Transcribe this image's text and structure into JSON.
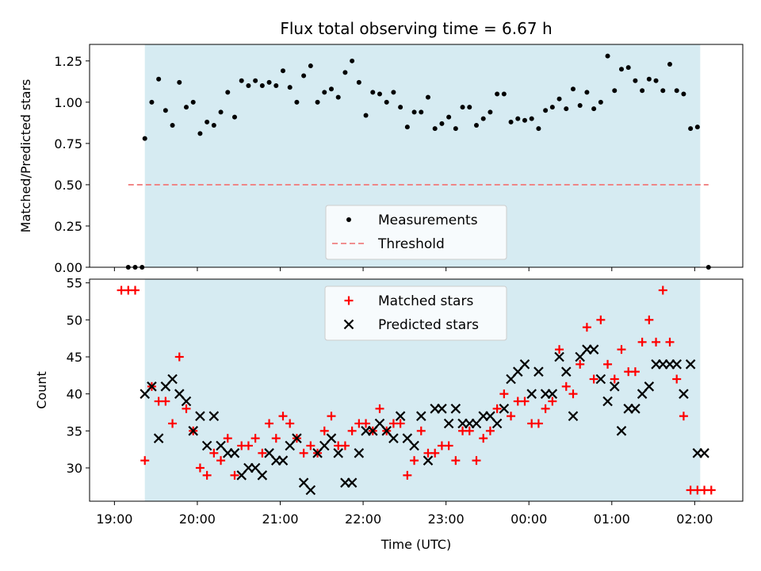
{
  "chart_data": [
    {
      "type": "scatter",
      "title": "Flux total observing time = 6.67 h",
      "xlabel": "",
      "ylabel": "Matched/Predicted stars",
      "ylim": [
        0,
        1.35
      ],
      "yticks": [
        "0.00",
        "0.25",
        "0.50",
        "0.75",
        "1.00",
        "1.25"
      ],
      "ytick_values": [
        0,
        0.25,
        0.5,
        0.75,
        1.0,
        1.25
      ],
      "xlim_hours": [
        18.7,
        26.58
      ],
      "shaded_span": {
        "start": "19:22",
        "end": "02:04",
        "color": "#add8e6"
      },
      "threshold": {
        "value": 0.5,
        "from": "19:10",
        "to": "02:10",
        "color": "#f08080",
        "style": "dashed"
      },
      "legend": {
        "placement": "lower-center",
        "entries": [
          "Measurements",
          "Threshold"
        ]
      },
      "series": [
        {
          "name": "Measurements",
          "color": "#000000",
          "marker": "dot",
          "x": [
            "19:10",
            "19:15",
            "19:20",
            "19:22",
            "19:27",
            "19:32",
            "19:37",
            "19:42",
            "19:47",
            "19:52",
            "19:57",
            "20:02",
            "20:07",
            "20:12",
            "20:17",
            "20:22",
            "20:27",
            "20:32",
            "20:37",
            "20:42",
            "20:47",
            "20:52",
            "20:57",
            "21:02",
            "21:07",
            "21:12",
            "21:17",
            "21:22",
            "21:27",
            "21:32",
            "21:37",
            "21:42",
            "21:47",
            "21:52",
            "21:57",
            "22:02",
            "22:07",
            "22:12",
            "22:17",
            "22:22",
            "22:27",
            "22:32",
            "22:37",
            "22:42",
            "22:47",
            "22:52",
            "22:57",
            "23:02",
            "23:07",
            "23:12",
            "23:17",
            "23:22",
            "23:27",
            "23:32",
            "23:37",
            "23:42",
            "23:47",
            "23:52",
            "23:57",
            "00:02",
            "00:07",
            "00:12",
            "00:17",
            "00:22",
            "00:27",
            "00:32",
            "00:37",
            "00:42",
            "00:47",
            "00:52",
            "00:57",
            "01:02",
            "01:07",
            "01:12",
            "01:17",
            "01:22",
            "01:27",
            "01:32",
            "01:37",
            "01:42",
            "01:47",
            "01:52",
            "01:57",
            "02:02",
            "02:10"
          ],
          "y": [
            0.0,
            0.0,
            0.0,
            0.78,
            1.0,
            1.14,
            0.95,
            0.86,
            1.12,
            0.97,
            1.0,
            0.81,
            0.88,
            0.86,
            0.94,
            1.06,
            0.91,
            1.13,
            1.1,
            1.13,
            1.1,
            1.12,
            1.1,
            1.19,
            1.09,
            1.0,
            1.16,
            1.22,
            1.0,
            1.06,
            1.08,
            1.03,
            1.18,
            1.25,
            1.12,
            0.92,
            1.06,
            1.05,
            1.0,
            1.06,
            0.97,
            0.85,
            0.94,
            0.94,
            1.03,
            0.84,
            0.87,
            0.91,
            0.84,
            0.97,
            0.97,
            0.86,
            0.9,
            0.94,
            1.05,
            1.05,
            0.88,
            0.9,
            0.89,
            0.9,
            0.84,
            0.95,
            0.97,
            1.02,
            0.96,
            1.08,
            0.98,
            1.06,
            0.96,
            1.0,
            1.28,
            1.07,
            1.2,
            1.21,
            1.13,
            1.07,
            1.14,
            1.13,
            1.07,
            1.23,
            1.07,
            1.05,
            0.84,
            0.85,
            0.0
          ]
        }
      ]
    },
    {
      "type": "scatter",
      "title": "",
      "xlabel": "Time (UTC)",
      "ylabel": "Count",
      "ylim": [
        25.5,
        55.5
      ],
      "yticks": [
        "30",
        "35",
        "40",
        "45",
        "50",
        "55"
      ],
      "ytick_values": [
        30,
        35,
        40,
        45,
        50,
        55
      ],
      "xticks": [
        "19:00",
        "20:00",
        "21:00",
        "22:00",
        "23:00",
        "00:00",
        "01:00",
        "02:00"
      ],
      "xtick_values": [
        19,
        20,
        21,
        22,
        23,
        24,
        25,
        26
      ],
      "xlim_hours": [
        18.7,
        26.58
      ],
      "shaded_span": {
        "start": "19:22",
        "end": "02:04",
        "color": "#add8e6"
      },
      "legend": {
        "placement": "upper-center",
        "entries": [
          "Matched stars",
          "Predicted stars"
        ]
      },
      "series": [
        {
          "name": "Matched stars",
          "color": "#ff0000",
          "marker": "plus",
          "x": [
            "19:05",
            "19:10",
            "19:15",
            "19:22",
            "19:27",
            "19:32",
            "19:37",
            "19:42",
            "19:47",
            "19:52",
            "19:57",
            "20:02",
            "20:07",
            "20:12",
            "20:17",
            "20:22",
            "20:27",
            "20:32",
            "20:37",
            "20:42",
            "20:47",
            "20:52",
            "20:57",
            "21:02",
            "21:07",
            "21:12",
            "21:17",
            "21:22",
            "21:27",
            "21:32",
            "21:37",
            "21:42",
            "21:47",
            "21:52",
            "21:57",
            "22:02",
            "22:07",
            "22:12",
            "22:17",
            "22:22",
            "22:27",
            "22:32",
            "22:37",
            "22:42",
            "22:47",
            "22:52",
            "22:57",
            "23:02",
            "23:07",
            "23:12",
            "23:17",
            "23:22",
            "23:27",
            "23:32",
            "23:37",
            "23:42",
            "23:47",
            "23:52",
            "23:57",
            "00:02",
            "00:07",
            "00:12",
            "00:17",
            "00:22",
            "00:27",
            "00:32",
            "00:37",
            "00:42",
            "00:47",
            "00:52",
            "00:57",
            "01:02",
            "01:07",
            "01:12",
            "01:17",
            "01:22",
            "01:27",
            "01:32",
            "01:37",
            "01:42",
            "01:47",
            "01:52",
            "01:57",
            "02:02",
            "02:07",
            "02:12"
          ],
          "y": [
            54,
            54,
            54,
            31,
            41,
            39,
            39,
            36,
            45,
            38,
            35,
            30,
            29,
            32,
            31,
            34,
            29,
            33,
            33,
            34,
            32,
            36,
            34,
            37,
            36,
            34,
            32,
            33,
            32,
            35,
            37,
            33,
            33,
            35,
            36,
            36,
            35,
            38,
            35,
            36,
            36,
            29,
            31,
            35,
            32,
            32,
            33,
            33,
            31,
            35,
            35,
            31,
            34,
            35,
            38,
            40,
            37,
            39,
            39,
            36,
            36,
            38,
            39,
            46,
            41,
            40,
            44,
            49,
            42,
            50,
            44,
            42,
            46,
            43,
            43,
            47,
            50,
            47,
            54,
            47,
            42,
            37,
            27,
            27,
            27,
            27
          ],
          "note_visible": "points as plotted"
        },
        {
          "name": "Predicted stars",
          "color": "#000000",
          "marker": "x",
          "x": [
            "19:22",
            "19:27",
            "19:32",
            "19:37",
            "19:42",
            "19:47",
            "19:52",
            "19:57",
            "20:02",
            "20:07",
            "20:12",
            "20:17",
            "20:22",
            "20:27",
            "20:32",
            "20:37",
            "20:42",
            "20:47",
            "20:52",
            "20:57",
            "21:02",
            "21:07",
            "21:12",
            "21:17",
            "21:22",
            "21:27",
            "21:32",
            "21:37",
            "21:42",
            "21:47",
            "21:52",
            "21:57",
            "22:02",
            "22:07",
            "22:12",
            "22:17",
            "22:22",
            "22:27",
            "22:32",
            "22:37",
            "22:42",
            "22:47",
            "22:52",
            "22:57",
            "23:02",
            "23:07",
            "23:12",
            "23:17",
            "23:22",
            "23:27",
            "23:32",
            "23:37",
            "23:42",
            "23:47",
            "23:52",
            "23:57",
            "00:02",
            "00:07",
            "00:12",
            "00:17",
            "00:22",
            "00:27",
            "00:32",
            "00:37",
            "00:42",
            "00:47",
            "00:52",
            "00:57",
            "01:02",
            "01:07",
            "01:12",
            "01:17",
            "01:22",
            "01:27",
            "01:32",
            "01:37",
            "01:42",
            "01:47",
            "01:52",
            "01:57",
            "02:02",
            "02:07"
          ],
          "y": [
            40,
            41,
            34,
            41,
            42,
            40,
            39,
            35,
            37,
            33,
            37,
            33,
            32,
            32,
            29,
            30,
            30,
            29,
            32,
            31,
            31,
            33,
            34,
            28,
            27,
            32,
            33,
            34,
            32,
            28,
            28,
            32,
            35,
            35,
            36,
            35,
            34,
            37,
            34,
            33,
            37,
            31,
            38,
            38,
            36,
            38,
            36,
            36,
            36,
            37,
            37,
            36,
            38,
            42,
            43,
            44,
            40,
            43,
            40,
            40,
            45,
            43,
            37,
            45,
            46,
            46,
            42,
            39,
            41,
            35,
            38,
            38,
            40,
            41,
            44,
            44,
            44,
            44,
            40,
            44,
            32,
            32
          ]
        }
      ]
    }
  ]
}
